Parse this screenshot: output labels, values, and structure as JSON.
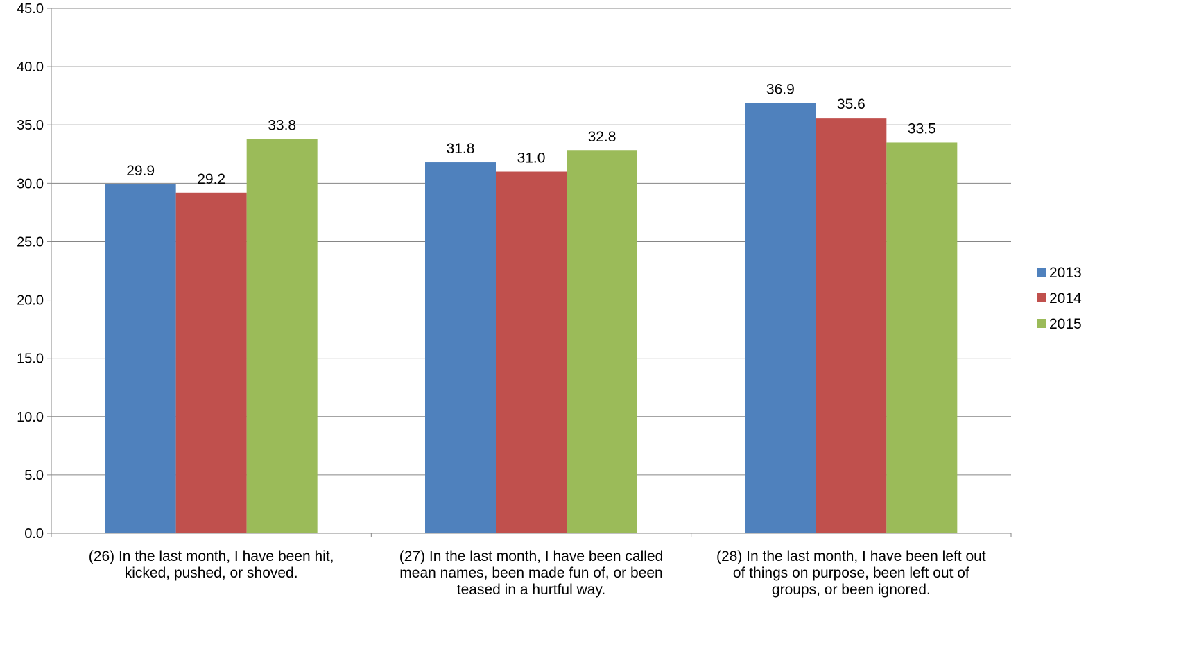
{
  "chart_data": {
    "type": "bar",
    "categories": [
      [
        "(26) In the last month, I have been hit,",
        "kicked, pushed, or shoved."
      ],
      [
        "(27) In the last month, I have been called",
        "mean names, been made fun of, or been",
        "teased in a hurtful way."
      ],
      [
        "(28) In the last month, I have been left out",
        "of things on purpose, been left out of",
        "groups, or been ignored."
      ]
    ],
    "series": [
      {
        "name": "2013",
        "color": "#4F81BD",
        "values": [
          29.9,
          31.8,
          36.9
        ]
      },
      {
        "name": "2014",
        "color": "#C0504D",
        "values": [
          29.2,
          31.0,
          35.6
        ]
      },
      {
        "name": "2015",
        "color": "#9BBB59",
        "values": [
          33.8,
          32.8,
          33.5
        ]
      }
    ],
    "ylim": [
      0,
      45
    ],
    "ytick_step": 5,
    "ytick_decimals": 1,
    "gridlines": true,
    "legend_position": "right",
    "title": "",
    "xlabel": "",
    "ylabel": ""
  }
}
